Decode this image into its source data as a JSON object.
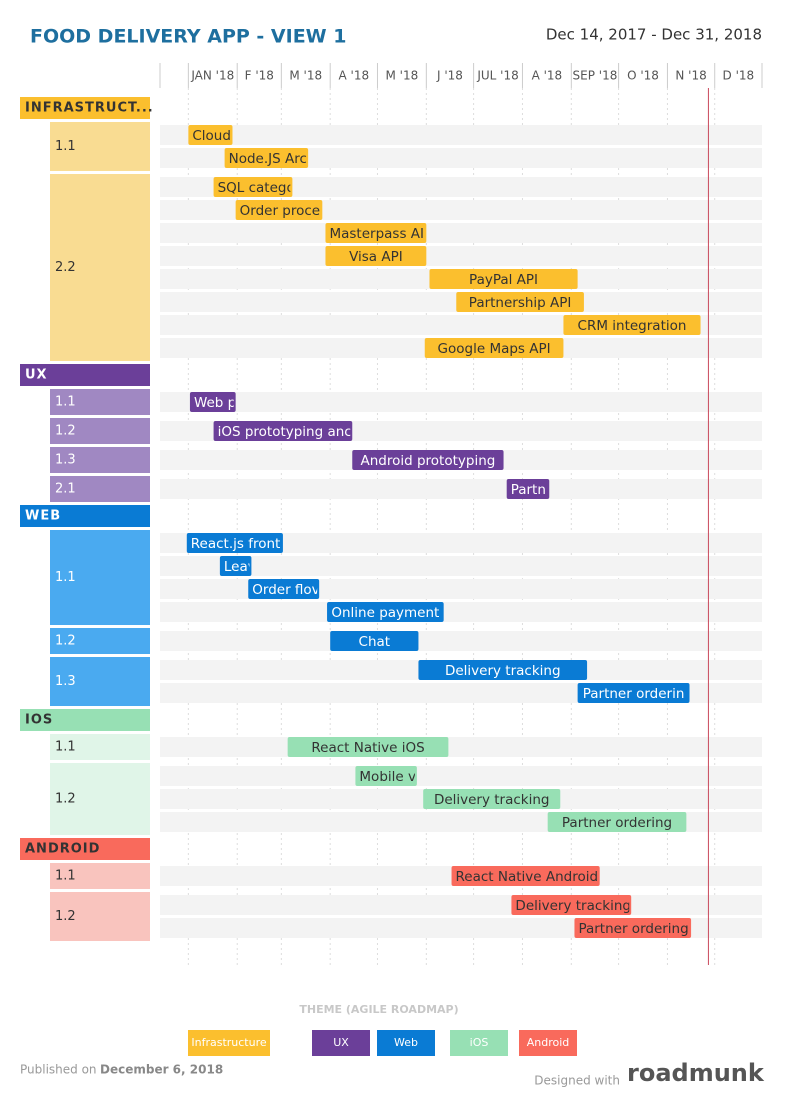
{
  "header": {
    "title": "FOOD DELIVERY APP - VIEW 1",
    "date_range": "Dec 14, 2017 - Dec 31, 2018"
  },
  "timeline": {
    "start": "2017-12-14",
    "end": "2018-12-31",
    "today": "2018-11-27",
    "months": [
      {
        "value": "2018-01-01",
        "label": "JAN '18"
      },
      {
        "value": "2018-02-01",
        "label": "F '18"
      },
      {
        "value": "2018-03-01",
        "label": "M '18"
      },
      {
        "value": "2018-04-01",
        "label": "A '18"
      },
      {
        "value": "2018-05-01",
        "label": "M '18"
      },
      {
        "value": "2018-06-01",
        "label": "J '18"
      },
      {
        "value": "2018-07-01",
        "label": "JUL '18"
      },
      {
        "value": "2018-08-01",
        "label": "A '18"
      },
      {
        "value": "2018-09-01",
        "label": "SEP '18"
      },
      {
        "value": "2018-10-01",
        "label": "O '18"
      },
      {
        "value": "2018-11-01",
        "label": "N '18"
      },
      {
        "value": "2018-12-01",
        "label": "D '18"
      }
    ]
  },
  "groups": [
    {
      "name": "INFRASTRUCT...",
      "color": "#fbbf2e",
      "light": "#f9dc92",
      "text": "#333333",
      "subgroups": [
        {
          "label": "1.1",
          "bars": [
            {
              "label": "Cloud",
              "start": "2018-01-01",
              "end": "2018-01-29"
            },
            {
              "label": "Node.JS Arc",
              "start": "2018-01-24",
              "end": "2018-03-18"
            }
          ]
        },
        {
          "label": "2.2",
          "bars": [
            {
              "label": "SQL catego",
              "start": "2018-01-17",
              "end": "2018-03-08"
            },
            {
              "label": "Order proce",
              "start": "2018-01-31",
              "end": "2018-03-27"
            },
            {
              "label": "Masterpass AI",
              "start": "2018-03-29",
              "end": "2018-06-01"
            },
            {
              "label": "Visa API",
              "start": "2018-03-29",
              "end": "2018-06-01"
            },
            {
              "label": "PayPal API",
              "start": "2018-06-03",
              "end": "2018-09-05"
            },
            {
              "label": "Partnership API",
              "start": "2018-06-20",
              "end": "2018-09-09"
            },
            {
              "label": "CRM integration",
              "start": "2018-08-27",
              "end": "2018-11-22"
            },
            {
              "label": "Google Maps API",
              "start": "2018-05-31",
              "end": "2018-08-27"
            }
          ]
        }
      ]
    },
    {
      "name": "UX",
      "color": "#6b3f99",
      "light": "#a088c2",
      "text": "#ffffff",
      "subgroups": [
        {
          "label": "1.1",
          "bars": [
            {
              "label": "Web p",
              "start": "2018-01-02",
              "end": "2018-01-31"
            }
          ]
        },
        {
          "label": "1.2",
          "bars": [
            {
              "label": "iOS prototyping anc",
              "start": "2018-01-17",
              "end": "2018-04-15"
            }
          ]
        },
        {
          "label": "1.3",
          "bars": [
            {
              "label": "Android prototyping",
              "start": "2018-04-15",
              "end": "2018-07-20"
            }
          ]
        },
        {
          "label": "2.1",
          "bars": [
            {
              "label": "Partn",
              "start": "2018-07-22",
              "end": "2018-08-18"
            }
          ]
        }
      ]
    },
    {
      "name": "WEB",
      "color": "#0a7bd4",
      "light": "#4aaaf0",
      "text": "#ffffff",
      "subgroups": [
        {
          "label": "1.1",
          "bars": [
            {
              "label": "React.js front",
              "start": "2017-12-31",
              "end": "2018-03-02"
            },
            {
              "label": "Leav",
              "start": "2018-01-21",
              "end": "2018-02-10"
            },
            {
              "label": "Order flov",
              "start": "2018-02-08",
              "end": "2018-03-25"
            },
            {
              "label": "Online payment",
              "start": "2018-03-30",
              "end": "2018-06-12"
            }
          ]
        },
        {
          "label": "1.2",
          "bars": [
            {
              "label": "Chat",
              "start": "2018-04-01",
              "end": "2018-05-27"
            }
          ]
        },
        {
          "label": "1.3",
          "bars": [
            {
              "label": "Delivery tracking",
              "start": "2018-05-27",
              "end": "2018-09-11"
            },
            {
              "label": "Partner orderin",
              "start": "2018-09-05",
              "end": "2018-11-15"
            }
          ]
        }
      ]
    },
    {
      "name": "IOS",
      "color": "#97e0b4",
      "light": "#e0f5e8",
      "text": "#333333",
      "subgroups": [
        {
          "label": "1.1",
          "bars": [
            {
              "label": "React Native iOS",
              "start": "2018-03-05",
              "end": "2018-06-15"
            }
          ]
        },
        {
          "label": "1.2",
          "bars": [
            {
              "label": "Mobile v",
              "start": "2018-04-17",
              "end": "2018-05-26"
            },
            {
              "label": "Delivery tracking",
              "start": "2018-05-30",
              "end": "2018-08-25"
            },
            {
              "label": "Partner ordering",
              "start": "2018-08-17",
              "end": "2018-11-13"
            }
          ]
        }
      ]
    },
    {
      "name": "ANDROID",
      "color": "#f96a5c",
      "light": "#f9c4be",
      "text": "#333333",
      "subgroups": [
        {
          "label": "1.1",
          "bars": [
            {
              "label": "React Native Android",
              "start": "2018-06-17",
              "end": "2018-09-19"
            }
          ]
        },
        {
          "label": "1.2",
          "bars": [
            {
              "label": "Delivery tracking",
              "start": "2018-07-25",
              "end": "2018-10-09"
            },
            {
              "label": "Partner ordering",
              "start": "2018-09-03",
              "end": "2018-11-16"
            }
          ]
        }
      ]
    }
  ],
  "legend": {
    "title": "THEME (AGILE ROADMAP)",
    "items": [
      "Infrastructure",
      "UX",
      "Web",
      "iOS",
      "Android"
    ]
  },
  "footer": {
    "published_label": "Published on",
    "published_date": "December 6, 2018",
    "designed_with": "Designed with",
    "brand": "roadmunk"
  }
}
